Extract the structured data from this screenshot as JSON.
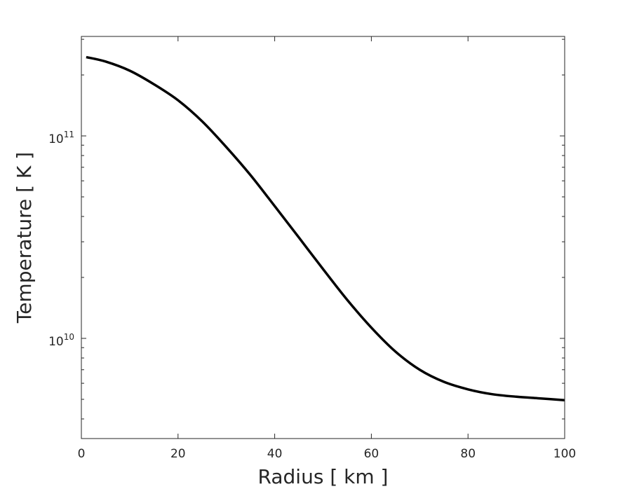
{
  "chart_data": {
    "type": "line",
    "title": "",
    "xlabel": "Radius [ km ]",
    "ylabel": "Temperature [ K ]",
    "xlim": [
      0,
      100
    ],
    "ylim": [
      3200000000.0,
      310000000000.0
    ],
    "yscale": "log",
    "grid": false,
    "legend": "none",
    "x_ticks": [
      0,
      20,
      40,
      60,
      80,
      100
    ],
    "x_tick_labels": [
      "0",
      "20",
      "40",
      "60",
      "80",
      "100"
    ],
    "y_ticks": [
      {
        "value": 10000000000.0,
        "base": "10",
        "exponent": "10"
      },
      {
        "value": 100000000000.0,
        "base": "10",
        "exponent": "11"
      }
    ],
    "series": [
      {
        "color": "#000000",
        "x": [
          1,
          5,
          10,
          15,
          20,
          25,
          30,
          35,
          40,
          45,
          50,
          55,
          60,
          65,
          70,
          75,
          80,
          85,
          90,
          95,
          100
        ],
        "y": [
          245000000000.0,
          233000000000.0,
          210000000000.0,
          180000000000.0,
          150000000000.0,
          118000000000.0,
          88000000000.0,
          64000000000.0,
          45000000000.0,
          31500000000.0,
          22000000000.0,
          15500000000.0,
          11300000000.0,
          8600000000.0,
          7000000000.0,
          6100000000.0,
          5600000000.0,
          5300000000.0,
          5150000000.0,
          5050000000.0,
          4950000000.0
        ]
      }
    ]
  }
}
